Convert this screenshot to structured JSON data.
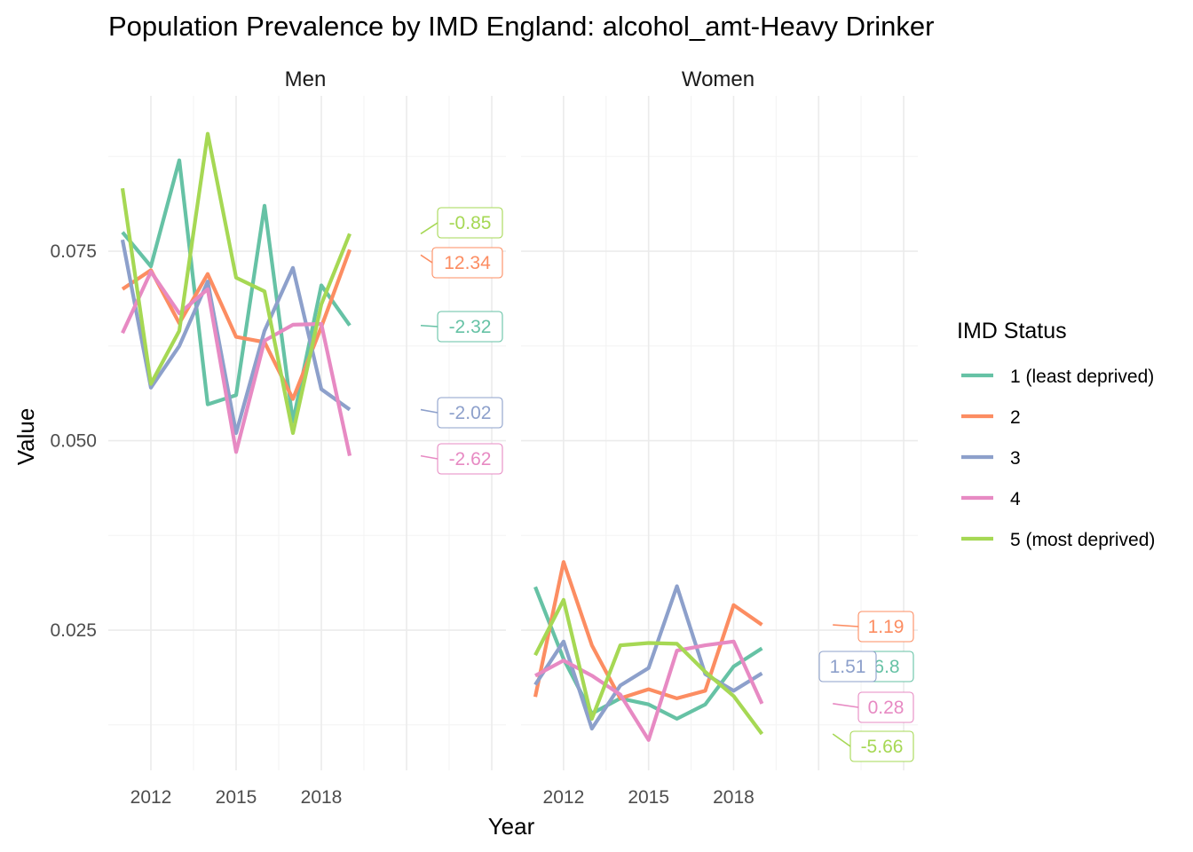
{
  "chart_data": {
    "type": "line",
    "title": "Population Prevalence by IMD England: alcohol_amt-Heavy Drinker",
    "xlabel": "Year",
    "ylabel": "Value",
    "x": [
      2011,
      2012,
      2013,
      2014,
      2015,
      2016,
      2017,
      2018,
      2019
    ],
    "xticks": [
      "2012",
      "2015",
      "2018"
    ],
    "yticks": [
      "0.025",
      "0.050",
      "0.075"
    ],
    "ylim": [
      0.0065,
      0.0955
    ],
    "xlim": [
      2010.5,
      2024.5
    ],
    "grid": true,
    "legend": {
      "title": "IMD Status",
      "position": "right",
      "entries": [
        "1 (least deprived)",
        "2",
        "3",
        "4",
        "5 (most deprived)"
      ]
    },
    "colors": [
      "#66C2A5",
      "#FC8D62",
      "#8DA0CB",
      "#E78AC3",
      "#A6D854"
    ],
    "panels": [
      {
        "name": "Men",
        "series": [
          {
            "name": "1 (least deprived)",
            "values": [
              0.0775,
              0.073,
              0.087,
              0.0548,
              0.056,
              0.081,
              0.0525,
              0.0705,
              0.0652
            ],
            "label": "-2.32",
            "label_value": 0.0652
          },
          {
            "name": "2",
            "values": [
              0.07,
              0.0725,
              0.0655,
              0.072,
              0.0637,
              0.063,
              0.0555,
              0.065,
              0.0752
            ],
            "label": "12.34",
            "label_value": 0.0745
          },
          {
            "name": "3",
            "values": [
              0.0765,
              0.057,
              0.0625,
              0.071,
              0.051,
              0.0645,
              0.0728,
              0.0568,
              0.0541
            ],
            "label": "-2.02",
            "label_value": 0.0541
          },
          {
            "name": "4",
            "values": [
              0.0642,
              0.0723,
              0.0668,
              0.07,
              0.0485,
              0.0632,
              0.0653,
              0.0654,
              0.048
            ],
            "label": "-2.62",
            "label_value": 0.048
          },
          {
            "name": "5 (most deprived)",
            "values": [
              0.0833,
              0.0575,
              0.0645,
              0.0905,
              0.0715,
              0.0697,
              0.051,
              0.068,
              0.0773
            ],
            "label": "-0.85",
            "label_value": 0.0773
          }
        ]
      },
      {
        "name": "Women",
        "series": [
          {
            "name": "1 (least deprived)",
            "values": [
              0.0307,
              0.0212,
              0.014,
              0.016,
              0.0152,
              0.0133,
              0.0152,
              0.0202,
              0.0226
            ],
            "label": "6.8",
            "label_value": 0.0203
          },
          {
            "name": "2",
            "values": [
              0.0162,
              0.034,
              0.023,
              0.016,
              0.0172,
              0.016,
              0.017,
              0.0283,
              0.0257
            ],
            "label": "1.19",
            "label_value": 0.0257
          },
          {
            "name": "3",
            "values": [
              0.0178,
              0.0235,
              0.012,
              0.0177,
              0.02,
              0.0308,
              0.0192,
              0.017,
              0.0193
            ],
            "label": "1.51",
            "label_value": 0.0203
          },
          {
            "name": "4",
            "values": [
              0.019,
              0.021,
              0.019,
              0.0165,
              0.0105,
              0.0223,
              0.023,
              0.0235,
              0.0153
            ],
            "label": "0.28",
            "label_value": 0.0153
          },
          {
            "name": "5 (most deprived)",
            "values": [
              0.0217,
              0.029,
              0.0133,
              0.023,
              0.0233,
              0.0232,
              0.0195,
              0.0163,
              0.0113
            ],
            "label": "-5.66",
            "label_value": 0.0113
          }
        ]
      }
    ]
  }
}
